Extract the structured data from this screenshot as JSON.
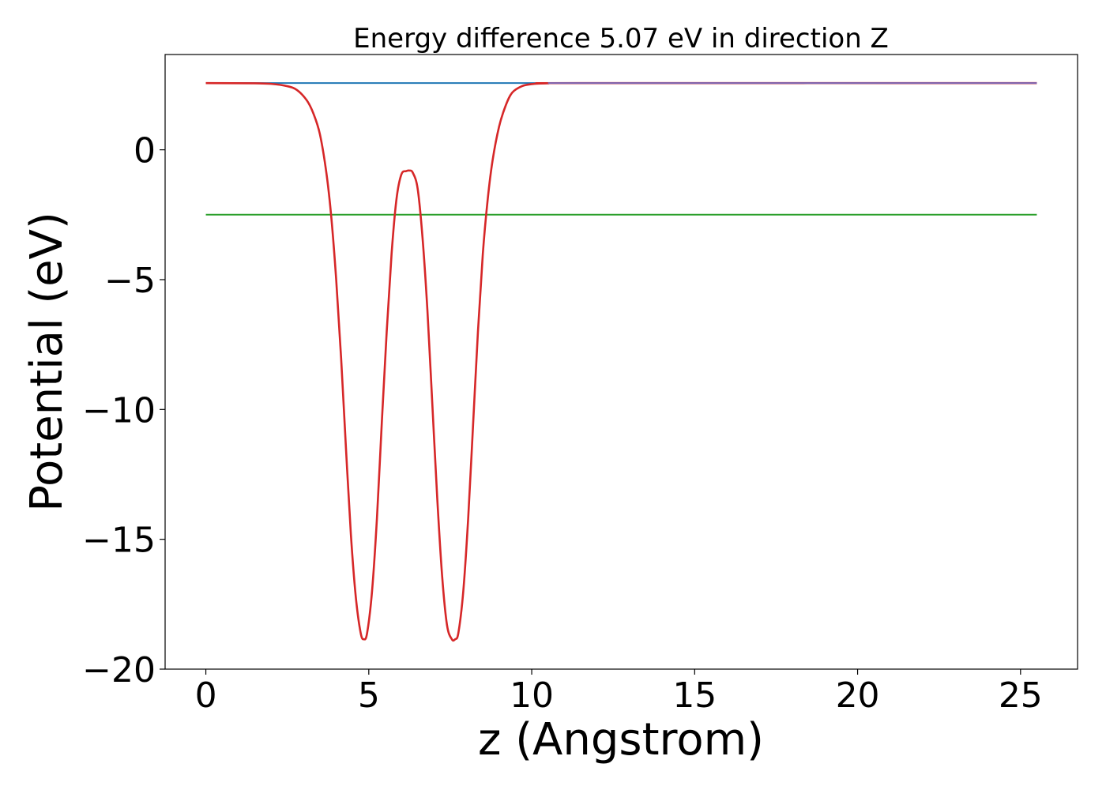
{
  "chart_data": {
    "type": "line",
    "title": "Energy difference 5.07 eV in direction Z",
    "xlabel": "z (Angstrom)",
    "ylabel": "Potential (eV)",
    "xlim": [
      -1.25,
      26.75
    ],
    "ylim": [
      -20,
      3.67
    ],
    "xticks": [
      0,
      5,
      10,
      15,
      20,
      25
    ],
    "yticks": [
      0,
      -5,
      -10,
      -15,
      -20
    ],
    "xtick_labels": [
      "0",
      "5",
      "10",
      "15",
      "20",
      "25"
    ],
    "ytick_labels": [
      "0",
      "−5",
      "−10",
      "−15",
      "−20"
    ],
    "grid": false,
    "legend": "none",
    "series": [
      {
        "color": "#1f77b4",
        "x": [
          0,
          25.5
        ],
        "y": [
          2.57,
          2.57
        ]
      },
      {
        "color": "#2ca02c",
        "x": [
          0,
          25.5
        ],
        "y": [
          -2.5,
          -2.5
        ]
      },
      {
        "color": "#d62728",
        "x": [
          0,
          1.5,
          2.0,
          2.5,
          2.8,
          3.1,
          3.3,
          3.5,
          3.7,
          3.85,
          4.0,
          4.15,
          4.3,
          4.45,
          4.6,
          4.75,
          4.85,
          4.95,
          5.1,
          5.25,
          5.4,
          5.55,
          5.7,
          5.85,
          6.0,
          6.15,
          6.25,
          6.35,
          6.5,
          6.65,
          6.8,
          6.95,
          7.1,
          7.25,
          7.4,
          7.55,
          7.65,
          7.75,
          7.9,
          8.05,
          8.2,
          8.35,
          8.5,
          8.65,
          8.8,
          9.0,
          9.2,
          9.4,
          9.7,
          10.0,
          10.5,
          11.5,
          25.5
        ],
        "y": [
          2.57,
          2.56,
          2.54,
          2.45,
          2.3,
          1.9,
          1.4,
          0.6,
          -0.9,
          -2.6,
          -5.0,
          -8.0,
          -11.5,
          -14.8,
          -17.2,
          -18.6,
          -18.85,
          -18.6,
          -17.0,
          -14.2,
          -10.5,
          -7.0,
          -4.0,
          -1.9,
          -0.95,
          -0.82,
          -0.8,
          -0.88,
          -1.5,
          -3.4,
          -6.2,
          -9.8,
          -13.4,
          -16.4,
          -18.3,
          -18.85,
          -18.85,
          -18.6,
          -17.0,
          -14.2,
          -10.6,
          -7.0,
          -4.0,
          -1.9,
          -0.4,
          0.9,
          1.7,
          2.2,
          2.45,
          2.53,
          2.56,
          2.57,
          2.57
        ]
      },
      {
        "color": "#7b6ab8",
        "x": [
          10.5,
          25.5
        ],
        "y": [
          2.57,
          2.57
        ]
      }
    ]
  }
}
